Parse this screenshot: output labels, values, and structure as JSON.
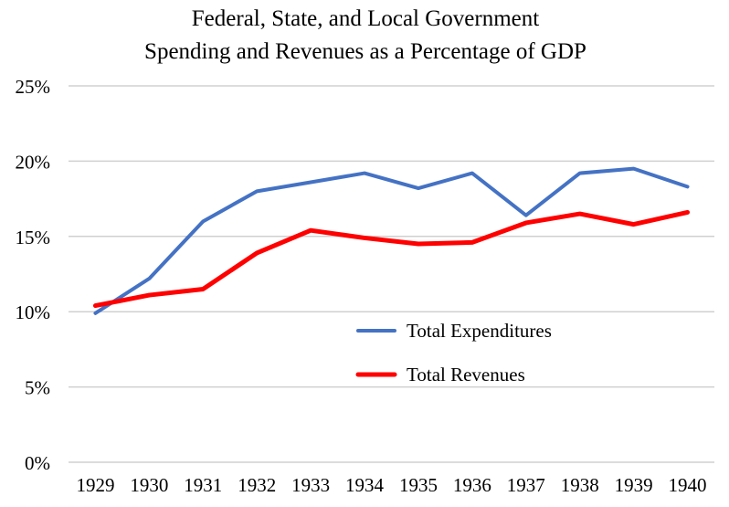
{
  "chart_data": {
    "type": "line",
    "title": [
      "Federal, State, and Local Government",
      "Spending and Revenues as a Percentage of GDP"
    ],
    "xlabel": "",
    "ylabel": "",
    "categories": [
      "1929",
      "1930",
      "1931",
      "1932",
      "1933",
      "1934",
      "1935",
      "1936",
      "1937",
      "1938",
      "1939",
      "1940"
    ],
    "ylim": [
      0,
      25
    ],
    "yticks": [
      0,
      5,
      10,
      15,
      20,
      25
    ],
    "ytick_labels": [
      "0%",
      "5%",
      "10%",
      "15%",
      "20%",
      "25%"
    ],
    "grid": true,
    "legend_position": "center-right inside plot",
    "series": [
      {
        "name": "Total Expenditures",
        "color": "#4472C4",
        "values": [
          9.9,
          12.2,
          16.0,
          18.0,
          18.6,
          19.2,
          18.2,
          19.2,
          16.4,
          19.2,
          19.5,
          18.3
        ]
      },
      {
        "name": "Total Revenues",
        "color": "#FF0000",
        "values": [
          10.4,
          11.1,
          11.5,
          13.9,
          15.4,
          14.9,
          14.5,
          14.6,
          15.9,
          16.5,
          15.8,
          16.6
        ]
      }
    ]
  }
}
